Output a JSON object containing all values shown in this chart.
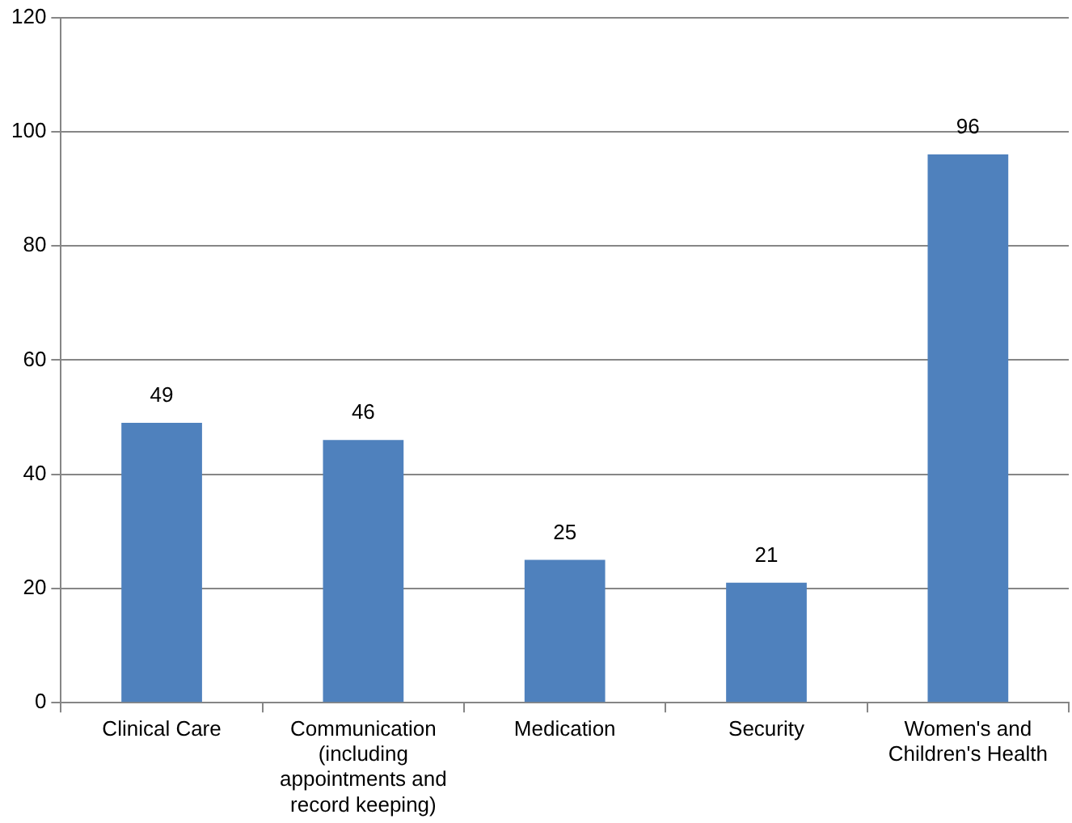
{
  "chart_data": {
    "type": "bar",
    "categories": [
      "Clinical Care",
      "Communication (including appointments and record keeping)",
      "Medication",
      "Security",
      "Women's and Children's Health"
    ],
    "values": [
      49,
      46,
      25,
      21,
      96
    ],
    "color": "#4f81bd",
    "ylim": [
      0,
      120
    ],
    "yticks": [
      0,
      20,
      40,
      60,
      80,
      100,
      120
    ],
    "grid": "y",
    "data_labels": true
  }
}
